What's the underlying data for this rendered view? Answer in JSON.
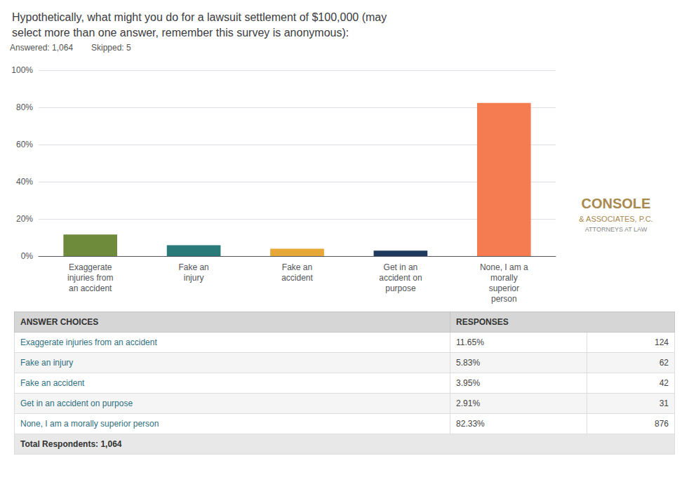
{
  "chart_data": {
    "type": "bar",
    "title": "Hypothetically, what might you do for a lawsuit settlement of $100,000 (may\nselect more than one answer, remember this survey is anonymous):",
    "annotations": [
      "Answered: 1,064",
      "Skipped: 5",
      "CONSOLE",
      "& ASSOCIATES, P.C.",
      "ATTORNEYS AT LAW"
    ],
    "categories": [
      "Exaggerate\ninjuries from\nan accident",
      "Fake an\ninjury",
      "Fake an\naccident",
      "Get in an\naccident on\npurpose",
      "None, I am a\nmorally\nsuperior\nperson"
    ],
    "values": [
      11.65,
      5.83,
      3.95,
      2.91,
      82.33
    ],
    "colors": [
      "#6d8b3a",
      "#2a7a7a",
      "#e8a838",
      "#1e3a5f",
      "#f47c50"
    ],
    "ylim": [
      0,
      100
    ],
    "yticks": [
      {
        "value": 0,
        "label": "0%"
      },
      {
        "value": 20,
        "label": "20%"
      },
      {
        "value": 40,
        "label": "40%"
      },
      {
        "value": 60,
        "label": "60%"
      },
      {
        "value": 80,
        "label": "80%"
      },
      {
        "value": 100,
        "label": "100%"
      }
    ],
    "grid": true,
    "table": {
      "columns": [
        "ANSWER CHOICES",
        "RESPONSES"
      ],
      "rows": [
        [
          "Exaggerate injuries from an accident",
          "11.65%",
          124
        ],
        [
          "Fake an injury",
          "5.83%",
          62
        ],
        [
          "Fake an accident",
          "3.95%",
          42
        ],
        [
          "Get in an accident on purpose",
          "2.91%",
          31
        ],
        [
          "None, I am a morally superior person",
          "82.33%",
          876
        ]
      ],
      "footer": "Total Respondents: 1,064"
    }
  }
}
